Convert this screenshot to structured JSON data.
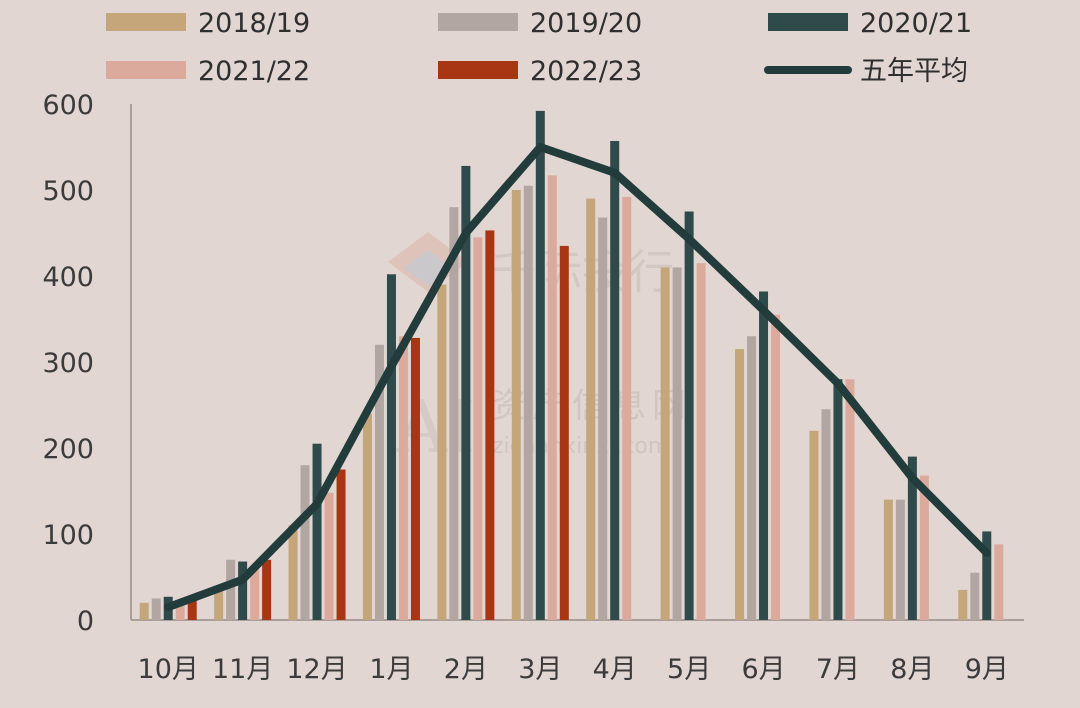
{
  "chart_data": {
    "type": "bar",
    "title": "",
    "xlabel": "",
    "ylabel": "",
    "ylim": [
      0,
      600
    ],
    "yticks": [
      0,
      100,
      200,
      300,
      400,
      500,
      600
    ],
    "categories": [
      "10月",
      "11月",
      "12月",
      "1月",
      "2月",
      "3月",
      "4月",
      "5月",
      "6月",
      "7月",
      "8月",
      "9月"
    ],
    "series": [
      {
        "name": "2018/19",
        "color": "#c4a67a",
        "values": [
          20,
          40,
          110,
          240,
          390,
          500,
          490,
          410,
          315,
          220,
          140,
          35
        ]
      },
      {
        "name": "2019/20",
        "color": "#b2a6a3",
        "values": [
          25,
          70,
          180,
          320,
          480,
          505,
          468,
          410,
          330,
          245,
          140,
          55
        ]
      },
      {
        "name": "2020/21",
        "color": "#2f4a4a",
        "values": [
          27,
          68,
          205,
          402,
          528,
          592,
          557,
          475,
          382,
          280,
          190,
          103
        ]
      },
      {
        "name": "2021/22",
        "color": "#dcaa9d",
        "values": [
          22,
          62,
          148,
          330,
          445,
          517,
          492,
          415,
          355,
          280,
          168,
          88
        ]
      },
      {
        "name": "2022/23",
        "color": "#a83513",
        "values": [
          25,
          70,
          175,
          328,
          453,
          435,
          null,
          null,
          null,
          null,
          null,
          null
        ]
      }
    ],
    "line": {
      "name": "五年平均",
      "color": "#223b3b",
      "values": [
        15,
        47,
        135,
        295,
        450,
        550,
        520,
        443,
        360,
        275,
        165,
        78
      ]
    },
    "legend_position": "top",
    "grid": false
  },
  "watermark": {
    "line1": "千际投行",
    "line2": "资产信息网",
    "line3": "zichanxinxi.com",
    "logo": "AI"
  }
}
